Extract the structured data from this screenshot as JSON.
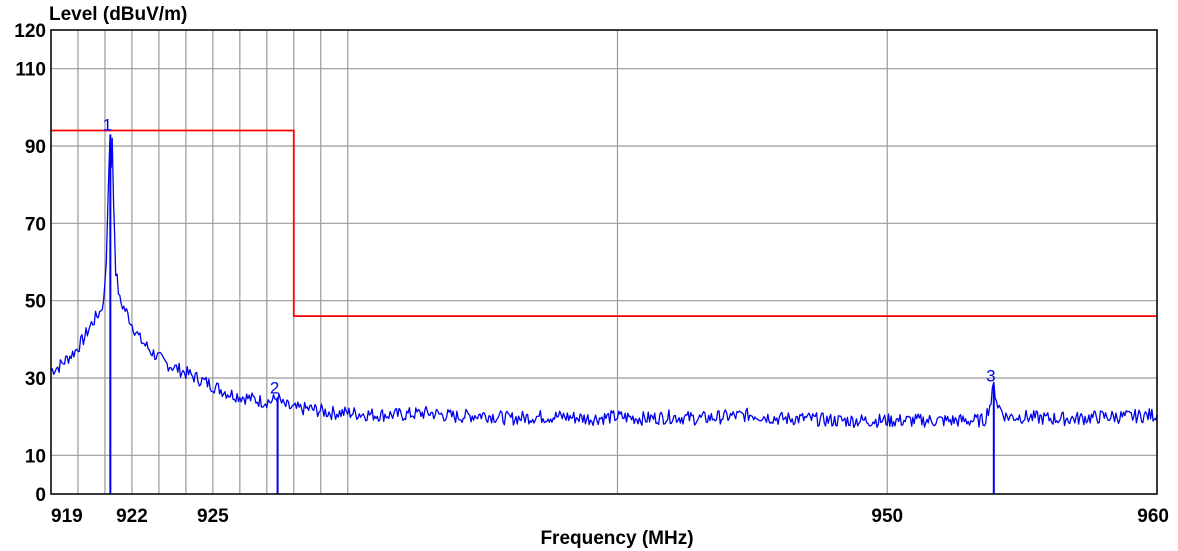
{
  "chart_data": {
    "type": "line",
    "ylabel": "Level (dBuV/m)",
    "xlabel": "Frequency (MHz)",
    "xlim": [
      919,
      960
    ],
    "ylim": [
      0,
      120
    ],
    "x_ticks": [
      919,
      922,
      925,
      950,
      960
    ],
    "y_ticks": [
      0,
      10,
      30,
      50,
      70,
      90,
      110,
      120
    ],
    "grid": true,
    "grid_x": [
      919,
      920,
      921,
      922,
      923,
      924,
      925,
      926,
      927,
      928,
      929,
      930,
      940,
      950,
      960
    ],
    "grid_y": [
      0,
      10,
      30,
      50,
      70,
      90,
      110,
      120
    ],
    "series": [
      {
        "color": "#0000ee",
        "points": [
          [
            919.0,
            32
          ],
          [
            919.3,
            33
          ],
          [
            919.6,
            35
          ],
          [
            919.9,
            37
          ],
          [
            920.2,
            40
          ],
          [
            920.5,
            44
          ],
          [
            920.8,
            47
          ],
          [
            920.95,
            50
          ],
          [
            921.05,
            60
          ],
          [
            921.12,
            78
          ],
          [
            921.18,
            90
          ],
          [
            921.2,
            93
          ],
          [
            921.23,
            85
          ],
          [
            921.27,
            92
          ],
          [
            921.32,
            75
          ],
          [
            921.4,
            58
          ],
          [
            921.55,
            50
          ],
          [
            921.8,
            47
          ],
          [
            922.0,
            44
          ],
          [
            922.3,
            40
          ],
          [
            922.7,
            37
          ],
          [
            923.2,
            34
          ],
          [
            923.8,
            32
          ],
          [
            924.4,
            30
          ],
          [
            925.0,
            28
          ],
          [
            925.6,
            26
          ],
          [
            926.2,
            25
          ],
          [
            926.8,
            24
          ],
          [
            927.2,
            24
          ],
          [
            927.4,
            25
          ],
          [
            927.6,
            23
          ],
          [
            928.0,
            22
          ],
          [
            928.6,
            22
          ],
          [
            929.4,
            21
          ],
          [
            930.0,
            21
          ],
          [
            931.0,
            20.5
          ],
          [
            932.0,
            20.5
          ],
          [
            933.0,
            21
          ],
          [
            934.0,
            20
          ],
          [
            935.0,
            20.5
          ],
          [
            936.0,
            19.5
          ],
          [
            937.0,
            20
          ],
          [
            938.0,
            20
          ],
          [
            939.0,
            19.5
          ],
          [
            940.0,
            20
          ],
          [
            941.0,
            19.5
          ],
          [
            942.0,
            20
          ],
          [
            943.0,
            19.5
          ],
          [
            944.0,
            20
          ],
          [
            945.0,
            20.5
          ],
          [
            946.0,
            19.5
          ],
          [
            947.0,
            19.5
          ],
          [
            948.0,
            19
          ],
          [
            949.0,
            19
          ],
          [
            950.0,
            19
          ],
          [
            951.0,
            19
          ],
          [
            952.0,
            19
          ],
          [
            953.0,
            19
          ],
          [
            953.6,
            19
          ],
          [
            953.85,
            24
          ],
          [
            953.95,
            28
          ],
          [
            954.1,
            23
          ],
          [
            954.4,
            20
          ],
          [
            955.0,
            20
          ],
          [
            956.0,
            19.5
          ],
          [
            957.0,
            19.5
          ],
          [
            958.0,
            20
          ],
          [
            959.0,
            20
          ],
          [
            960.0,
            20.5
          ]
        ]
      },
      {
        "color": "#ff0000",
        "points": [
          [
            919.0,
            94
          ],
          [
            928.0,
            94
          ],
          [
            928.0,
            46
          ],
          [
            960.0,
            46
          ]
        ]
      }
    ],
    "markers": [
      {
        "label": "1",
        "x": 921.2,
        "y": 93
      },
      {
        "label": "2",
        "x": 927.4,
        "y": 25
      },
      {
        "label": "3",
        "x": 953.95,
        "y": 28
      }
    ]
  }
}
